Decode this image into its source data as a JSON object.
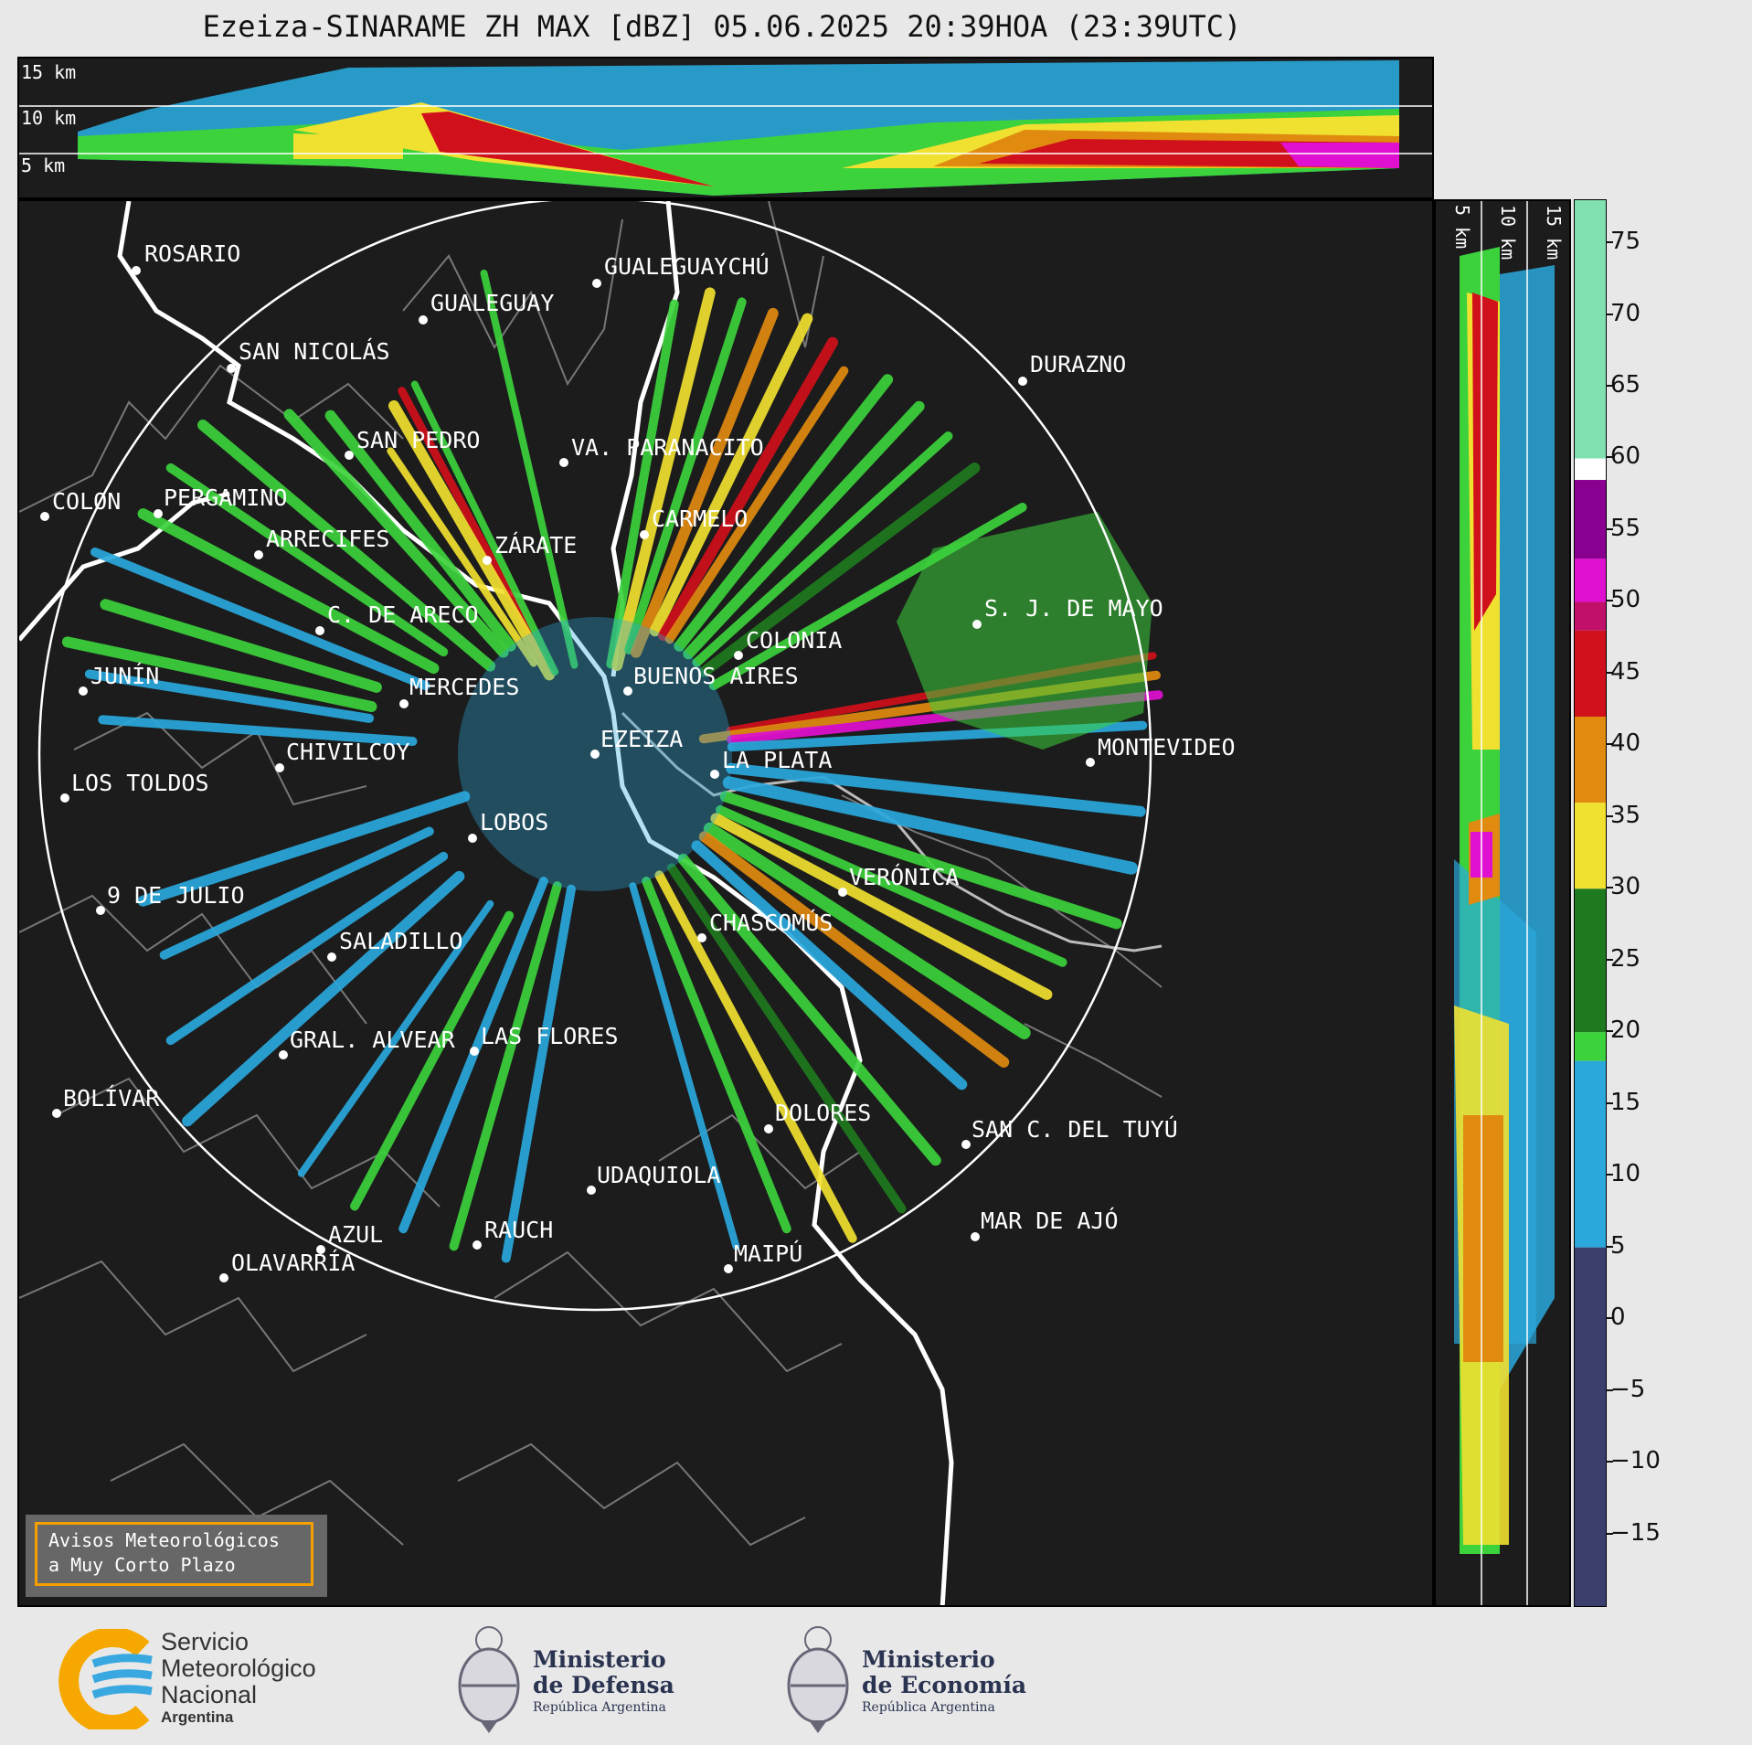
{
  "title": "Ezeiza-SINARAME ZH MAX [dBZ] 05.06.2025 20:39HOA (23:39UTC)",
  "top_panel": {
    "height_labels": [
      "15 km",
      "10 km",
      "5 km"
    ]
  },
  "side_panel": {
    "height_labels": [
      "5 km",
      "10 km",
      "15 km"
    ]
  },
  "colorbar": {
    "unit": "dBZ",
    "ticks": [
      "75",
      "70",
      "65",
      "60",
      "55",
      "50",
      "45",
      "40",
      "35",
      "30",
      "25",
      "20",
      "15",
      "10",
      "5",
      "0",
      "−5",
      "−10",
      "−15"
    ],
    "colors": {
      "low": "#3a3f6e",
      "blue": "#2aa8dc",
      "green": "#3cd23c",
      "darkgreen": "#1f7a1f",
      "yellow": "#f0e030",
      "orange": "#e08a10",
      "red": "#d0101a",
      "magenta": "#e010d0",
      "purple": "#8a0090",
      "white": "#ffffff",
      "mint": "#80e0b0"
    }
  },
  "map": {
    "radar_site": "EZEIZA",
    "cities": [
      {
        "name": "ROSARIO"
      },
      {
        "name": "GUALEGUAYCHÚ"
      },
      {
        "name": "GUALEGUAY"
      },
      {
        "name": "SAN NICOLÁS"
      },
      {
        "name": "DURAZNO"
      },
      {
        "name": "SAN PEDRO"
      },
      {
        "name": "VA. PARANACITO"
      },
      {
        "name": "COLON"
      },
      {
        "name": "PERGAMINO"
      },
      {
        "name": "CARMELO"
      },
      {
        "name": "ARRECIFES"
      },
      {
        "name": "ZÁRATE"
      },
      {
        "name": "S. J. DE MAYO"
      },
      {
        "name": "C. DE ARECO"
      },
      {
        "name": "COLONIA"
      },
      {
        "name": "JUNÍN"
      },
      {
        "name": "BUENOS AIRES"
      },
      {
        "name": "MERCEDES"
      },
      {
        "name": "EZEIZA"
      },
      {
        "name": "MONTEVIDEO"
      },
      {
        "name": "CHIVILCOY"
      },
      {
        "name": "LA PLATA"
      },
      {
        "name": "LOS TOLDOS"
      },
      {
        "name": "LOBOS"
      },
      {
        "name": "VERÓNICA"
      },
      {
        "name": "9 DE JULIO"
      },
      {
        "name": "CHASCOMÚS"
      },
      {
        "name": "SALADILLO"
      },
      {
        "name": "GRAL. ALVEAR"
      },
      {
        "name": "LAS FLORES"
      },
      {
        "name": "BOLÍVAR"
      },
      {
        "name": "DOLORES"
      },
      {
        "name": "SAN C. DEL TUYÚ"
      },
      {
        "name": "UDAQUIOLA"
      },
      {
        "name": "MAR DE AJÓ"
      },
      {
        "name": "AZUL"
      },
      {
        "name": "RAUCH"
      },
      {
        "name": "OLAVARRÍA"
      },
      {
        "name": "MAIPÚ"
      }
    ]
  },
  "legend": {
    "line1": "Avisos Meteorológicos",
    "line2": "a Muy Corto Plazo"
  },
  "footer": {
    "smn_line1": "Servicio",
    "smn_line2": "Meteorológico",
    "smn_line3": "Nacional",
    "smn_line4": "Argentina",
    "defensa_line1": "Ministerio",
    "defensa_line2": "de Defensa",
    "defensa_line3": "República Argentina",
    "economia_line1": "Ministerio",
    "economia_line2": "de Economía",
    "economia_line3": "República Argentina"
  }
}
